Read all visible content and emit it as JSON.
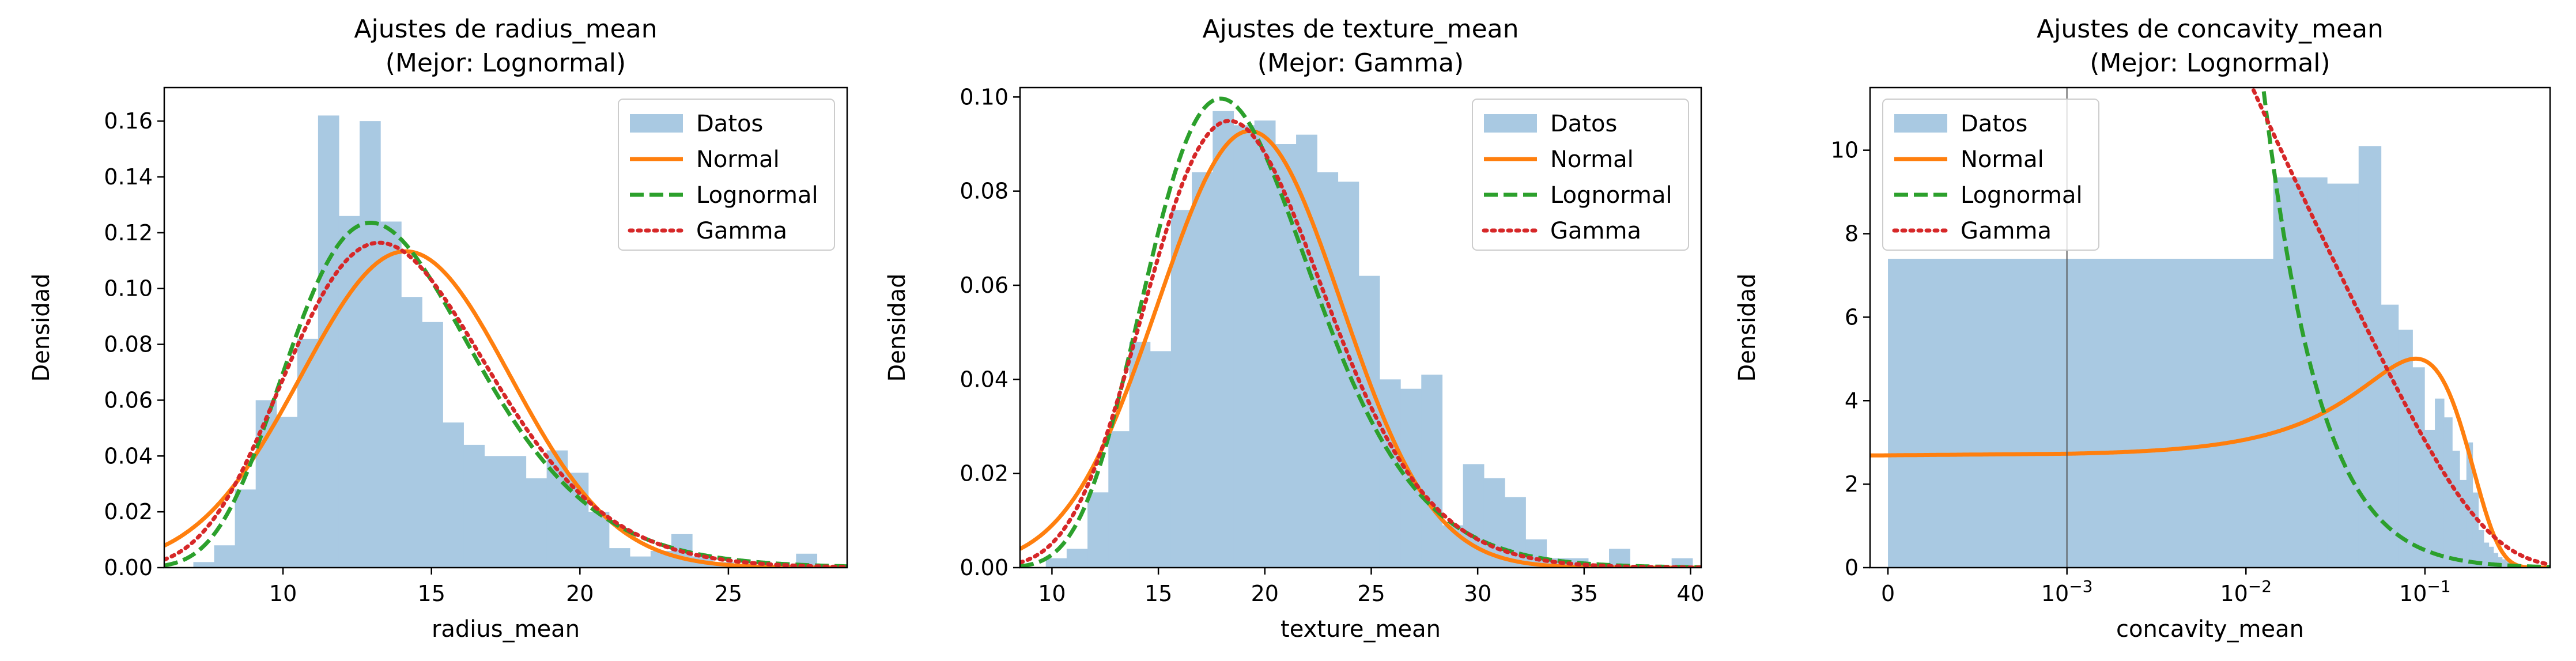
{
  "chart_data": [
    {
      "type": "histogram",
      "title": "Ajustes de radius_mean",
      "subtitle": "(Mejor: Lognormal)",
      "xlabel": "radius_mean",
      "ylabel": "Densidad",
      "xscale": "linear",
      "xlim": [
        6.0,
        29.0
      ],
      "ylim": [
        0,
        0.172
      ],
      "xticks": [
        10,
        15,
        20,
        25
      ],
      "yticks": [
        0.0,
        0.02,
        0.04,
        0.06,
        0.08,
        0.1,
        0.12,
        0.14,
        0.16
      ],
      "legend": {
        "placement": "top-right",
        "entries": [
          "Datos",
          "Normal",
          "Lognormal",
          "Gamma"
        ]
      },
      "histogram": {
        "name": "Datos",
        "color": "#a9c9e2",
        "bin_start": 6.98,
        "bin_width": 0.7,
        "densities": [
          0.002,
          0.008,
          0.028,
          0.06,
          0.054,
          0.082,
          0.162,
          0.126,
          0.16,
          0.124,
          0.097,
          0.088,
          0.052,
          0.044,
          0.04,
          0.04,
          0.032,
          0.042,
          0.034,
          0.02,
          0.007,
          0.004,
          0.006,
          0.012,
          0.004,
          0.002,
          0.0,
          0.0,
          0.0,
          0.005
        ]
      },
      "series": [
        {
          "name": "Normal",
          "type": "normal",
          "mean": 14.13,
          "sd": 3.52,
          "color": "#ff7f0e",
          "style": "solid"
        },
        {
          "name": "Lognormal",
          "type": "lognormal",
          "mu": 2.62,
          "sigma": 0.242,
          "color": "#2ca02c",
          "style": "dashed"
        },
        {
          "name": "Gamma",
          "type": "gamma",
          "shape": 16.1,
          "scale": 0.877,
          "color": "#d62728",
          "style": "dotted"
        }
      ]
    },
    {
      "type": "histogram",
      "title": "Ajustes de texture_mean",
      "subtitle": "(Mejor: Gamma)",
      "xlabel": "texture_mean",
      "ylabel": "Densidad",
      "xscale": "linear",
      "xlim": [
        8.5,
        40.5
      ],
      "ylim": [
        0,
        0.102
      ],
      "xticks": [
        10,
        15,
        20,
        25,
        30,
        35,
        40
      ],
      "yticks": [
        0.0,
        0.02,
        0.04,
        0.06,
        0.08,
        0.1
      ],
      "legend": {
        "placement": "top-right",
        "entries": [
          "Datos",
          "Normal",
          "Lognormal",
          "Gamma"
        ]
      },
      "histogram": {
        "name": "Datos",
        "color": "#a9c9e2",
        "bin_start": 9.71,
        "bin_width": 0.98,
        "densities": [
          0.002,
          0.004,
          0.016,
          0.029,
          0.048,
          0.046,
          0.076,
          0.084,
          0.097,
          0.094,
          0.095,
          0.09,
          0.092,
          0.084,
          0.082,
          0.062,
          0.04,
          0.038,
          0.041,
          0.009,
          0.022,
          0.019,
          0.015,
          0.006,
          0.002,
          0.002,
          0.0,
          0.004,
          0.0,
          0.0,
          0.002
        ]
      },
      "series": [
        {
          "name": "Normal",
          "type": "normal",
          "mean": 19.29,
          "sd": 4.3,
          "color": "#ff7f0e",
          "style": "solid"
        },
        {
          "name": "Lognormal",
          "type": "lognormal",
          "mu": 2.934,
          "sigma": 0.218,
          "color": "#2ca02c",
          "style": "dashed"
        },
        {
          "name": "Gamma",
          "type": "gamma",
          "shape": 20.2,
          "scale": 0.955,
          "color": "#d62728",
          "style": "dotted"
        }
      ]
    },
    {
      "type": "histogram",
      "title": "Ajustes de concavity_mean",
      "subtitle": "(Mejor: Lognormal)",
      "xlabel": "concavity_mean",
      "ylabel": "Densidad",
      "xscale": "symlog",
      "linthresh": 0.001,
      "xlim": [
        -0.0001,
        0.5
      ],
      "ylim": [
        0,
        11.5
      ],
      "xticks": [
        0,
        0.001,
        0.01,
        0.1
      ],
      "xtick_labels": [
        {
          "base": "0",
          "exp": ""
        },
        {
          "base": "10",
          "exp": "−3"
        },
        {
          "base": "10",
          "exp": "−2"
        },
        {
          "base": "10",
          "exp": "−1"
        }
      ],
      "yticks": [
        0,
        2,
        4,
        6,
        8,
        10
      ],
      "legend": {
        "placement": "top-left",
        "entries": [
          "Datos",
          "Normal",
          "Lognormal",
          "Gamma"
        ]
      },
      "histogram": {
        "name": "Datos",
        "color": "#a9c9e2",
        "bins": [
          {
            "x0": 0.0,
            "x1": 0.0142,
            "d": 7.4
          },
          {
            "x0": 0.0142,
            "x1": 0.0284,
            "d": 9.35
          },
          {
            "x0": 0.0284,
            "x1": 0.0426,
            "d": 9.2
          },
          {
            "x0": 0.0426,
            "x1": 0.0568,
            "d": 10.1
          },
          {
            "x0": 0.0568,
            "x1": 0.071,
            "d": 6.3
          },
          {
            "x0": 0.071,
            "x1": 0.0852,
            "d": 5.7
          },
          {
            "x0": 0.0852,
            "x1": 0.0994,
            "d": 4.8
          },
          {
            "x0": 0.0994,
            "x1": 0.1136,
            "d": 3.3
          },
          {
            "x0": 0.1136,
            "x1": 0.1278,
            "d": 4.05
          },
          {
            "x0": 0.1278,
            "x1": 0.142,
            "d": 3.6
          },
          {
            "x0": 0.142,
            "x1": 0.1562,
            "d": 2.8
          },
          {
            "x0": 0.1562,
            "x1": 0.1704,
            "d": 2.1
          },
          {
            "x0": 0.1704,
            "x1": 0.1846,
            "d": 3.0
          },
          {
            "x0": 0.1846,
            "x1": 0.1988,
            "d": 1.8
          },
          {
            "x0": 0.1988,
            "x1": 0.213,
            "d": 0.9
          },
          {
            "x0": 0.213,
            "x1": 0.2272,
            "d": 0.6
          },
          {
            "x0": 0.2272,
            "x1": 0.2414,
            "d": 0.5
          },
          {
            "x0": 0.2414,
            "x1": 0.2556,
            "d": 0.35
          },
          {
            "x0": 0.2556,
            "x1": 0.2698,
            "d": 0.25
          },
          {
            "x0": 0.2698,
            "x1": 0.284,
            "d": 0.2
          },
          {
            "x0": 0.284,
            "x1": 0.2982,
            "d": 0.15
          },
          {
            "x0": 0.2982,
            "x1": 0.3124,
            "d": 0.1
          },
          {
            "x0": 0.3124,
            "x1": 0.3266,
            "d": 0.1
          },
          {
            "x0": 0.3266,
            "x1": 0.3408,
            "d": 0.05
          },
          {
            "x0": 0.3408,
            "x1": 0.355,
            "d": 0.05
          },
          {
            "x0": 0.355,
            "x1": 0.3692,
            "d": 0.05
          },
          {
            "x0": 0.3692,
            "x1": 0.3834,
            "d": 0.02
          },
          {
            "x0": 0.3834,
            "x1": 0.3976,
            "d": 0.02
          },
          {
            "x0": 0.3976,
            "x1": 0.4118,
            "d": 0.02
          },
          {
            "x0": 0.4118,
            "x1": 0.426,
            "d": 0.02
          }
        ]
      },
      "series": [
        {
          "name": "Normal",
          "type": "normal",
          "mean": 0.0888,
          "sd": 0.0797,
          "color": "#ff7f0e",
          "style": "solid"
        },
        {
          "name": "Lognormal",
          "type": "lognormal",
          "mu": -5.95,
          "sigma": 2.1,
          "color": "#2ca02c",
          "style": "dashed"
        },
        {
          "name": "Gamma",
          "type": "gamma",
          "shape": 0.73,
          "scale": 0.122,
          "color": "#d62728",
          "style": "dotted"
        }
      ]
    }
  ]
}
